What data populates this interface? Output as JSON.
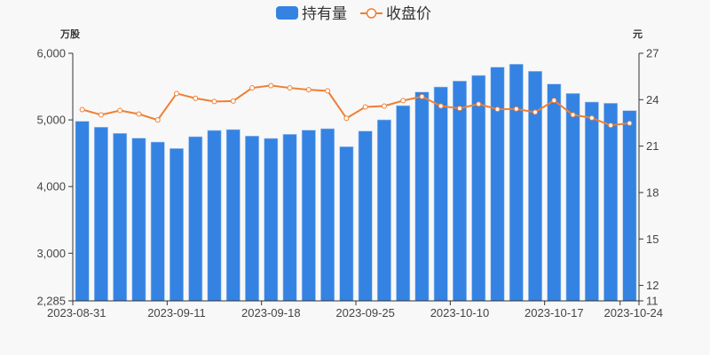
{
  "chart_data": {
    "type": "bar+line",
    "legend": {
      "position": "top-center",
      "items": [
        "持有量",
        "收盘价"
      ]
    },
    "colors": {
      "bar": "#3483e2",
      "line": "#f07f32",
      "axis": "#333333"
    },
    "left_axis": {
      "unit": "万股",
      "min": 2285,
      "max": 6000,
      "ticks": [
        "6,000",
        "5,000",
        "4,000",
        "3,000",
        "2,285"
      ],
      "tick_values": [
        6000,
        5000,
        4000,
        3000,
        2285
      ]
    },
    "right_axis": {
      "unit": "元",
      "min": 11,
      "max": 27,
      "ticks": [
        "27",
        "24",
        "21",
        "18",
        "15",
        "12",
        "11"
      ],
      "tick_values": [
        27,
        24,
        21,
        18,
        15,
        12,
        11
      ]
    },
    "x_ticks": [
      {
        "index": 0,
        "label": "2023-08-31"
      },
      {
        "index": 5,
        "label": "2023-09-11"
      },
      {
        "index": 10,
        "label": "2023-09-18"
      },
      {
        "index": 15,
        "label": "2023-09-25"
      },
      {
        "index": 20,
        "label": "2023-10-10"
      },
      {
        "index": 25,
        "label": "2023-10-17"
      },
      {
        "index": 29,
        "label": "2023-10-24"
      }
    ],
    "series": [
      {
        "name": "持有量",
        "type": "bar",
        "axis": "left",
        "values": [
          4979,
          4891,
          4798,
          4726,
          4668,
          4571,
          4748,
          4842,
          4855,
          4758,
          4722,
          4784,
          4846,
          4868,
          4598,
          4832,
          5001,
          5214,
          5418,
          5494,
          5583,
          5667,
          5791,
          5836,
          5730,
          5538,
          5397,
          5268,
          5250,
          5139
        ]
      },
      {
        "name": "收盘价",
        "type": "line",
        "axis": "right",
        "values": [
          23.36,
          23.02,
          23.3,
          23.07,
          22.69,
          24.4,
          24.09,
          23.88,
          23.91,
          24.76,
          24.91,
          24.76,
          24.64,
          24.57,
          22.8,
          23.53,
          23.59,
          23.94,
          24.2,
          23.59,
          23.44,
          23.72,
          23.38,
          23.4,
          23.19,
          23.95,
          23.02,
          22.82,
          22.34,
          22.48
        ]
      }
    ]
  }
}
